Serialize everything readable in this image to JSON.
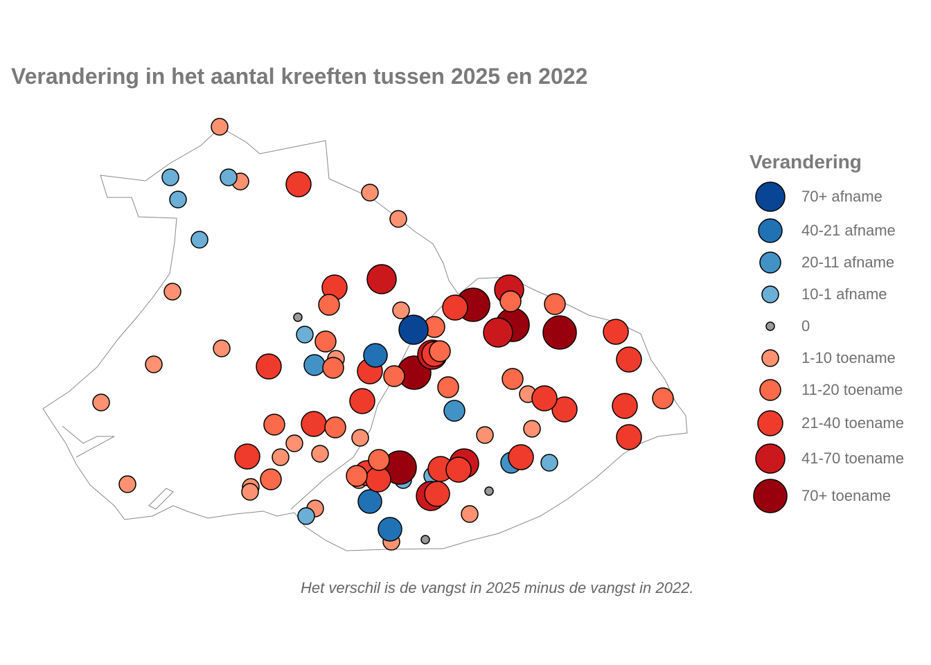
{
  "title": "Verandering in het aantal kreeften tussen 2025 en 2022",
  "caption": "Het verschil is de vangst in 2025 minus de vangst in 2022.",
  "legend": {
    "title": "Verandering",
    "items": [
      {
        "label": "70+ afname",
        "color": "#084594"
      },
      {
        "label": "40-21 afname",
        "color": "#2171b5"
      },
      {
        "label": "20-11 afname",
        "color": "#4292c6"
      },
      {
        "label": "10-1 afname",
        "color": "#6baed6"
      },
      {
        "label": "0",
        "color": "#999999"
      },
      {
        "label": "1-10 toename",
        "color": "#fc9272"
      },
      {
        "label": "11-20 toename",
        "color": "#fb6a4a"
      },
      {
        "label": "21-40 toename",
        "color": "#ef3b2c"
      },
      {
        "label": "41-70 toename",
        "color": "#cb181d"
      },
      {
        "label": "70+ toename",
        "color": "#99000d"
      }
    ]
  },
  "outline_color": "#888888"
}
